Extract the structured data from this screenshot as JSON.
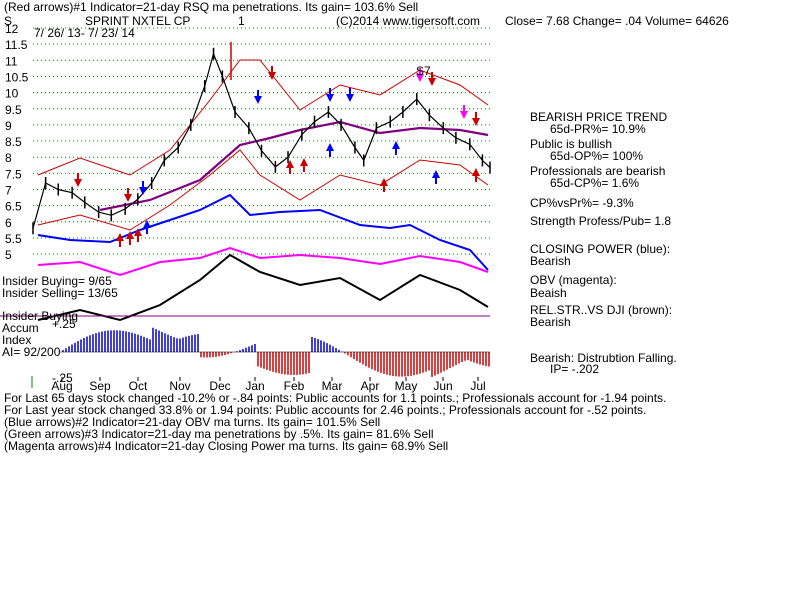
{
  "header": {
    "line1": "(Red arrows)#1 Indicator=21-day RSQ ma penetrations. Its gain= 103.6% Sell",
    "symbol": "S",
    "company": "SPRINT NXTEL CP",
    "one": "1",
    "site": "(C)2014 www.tigersoft.com",
    "quote": "Close=  7.68  Change= .04 Volume= 64626",
    "dates": "7/ 26/ 13- 7/ 23/ 14"
  },
  "right_panel": {
    "trend": "BEARISH PRICE TREND",
    "pr": "65d-PR%= 10.9%",
    "public": "Public is bullish",
    "op": "65d-OP%= 100%",
    "prof": "Professionals are bearish",
    "cp": "65d-CP%= 1.6%",
    "cpvs": "CP%vsPr%= -9.3%",
    "strength": "Strength Profess/Pub= 1.8",
    "closing": "CLOSING POWER (blue):",
    "closing_val": "Bearish",
    "obv": "OBV (magenta):",
    "obv_val": "Beaish",
    "rel": "REL.STR..VS DJI (brown):",
    "rel_val": "Bearish",
    "dist": "Bearish: Distrubtion Falling.",
    "ip": "IP= -.202"
  },
  "left_labels": {
    "insider_buying": "Insider Buying= 9/65",
    "insider_selling": "Insider Selling= 13/65",
    "insider_buying2": "Insider Buying",
    "accum": "Accum",
    "plus25": "+.25",
    "index": "Index",
    "ai": "AI= 92/200",
    "minus25": "-.25",
    "s7": "S7"
  },
  "footer": {
    "l1": "For Last 65 days stock changed -10.2% or -.84 points:  Public accounts for  1.1 points.;  Professionals account for -1.94 points.",
    "l2": "For Last year stock changed  33.8% or  1.94 points:  Public accounts for  2.46 points.;  Professionals account for -.52 points.",
    "l3": "(Blue arrows)#2 Indicator=21-day OBV ma turns. Its gain= 101.5% Sell",
    "l4": "(Green arrows)#3 Indicator=21-day ma penetrations by .5%. Its gain= 81.6% Sell",
    "l5": "(Magenta arrows)#4 Indicator=21-day Closing Power ma turns. Its gain= 68.9% Sell"
  },
  "colors": {
    "price": "#000000",
    "bands": "#cc0000",
    "ma": "#800080",
    "closing_power": "#0000ff",
    "obv": "#ff00ff",
    "accum_pos": "#0000cc",
    "accum_neg": "#cc0000",
    "grid": "#008000"
  },
  "chart_data": {
    "type": "line",
    "y_ticks": [
      "12",
      "11.5",
      "11",
      "10.5",
      "10",
      "9.5",
      "9",
      "8.5",
      "8",
      "7.5",
      "7",
      "6.5",
      "6",
      "5.5",
      "5"
    ],
    "y_values": [
      12,
      11.5,
      11,
      10.5,
      10,
      9.5,
      9,
      8.5,
      8,
      7.5,
      7,
      6.5,
      6,
      5.5,
      5
    ],
    "x_ticks": [
      "Aug",
      "Sep",
      "Oct",
      "Nov",
      "Dec",
      "Jan",
      "Feb",
      "Mar",
      "Apr",
      "May",
      "Jun",
      "Jul"
    ],
    "ylim": [
      5,
      12
    ],
    "grid": true,
    "series": [
      {
        "x": [
          "2013-07-26",
          "2013-08-05",
          "2013-08-15",
          "2013-08-26",
          "2013-09-05",
          "2013-09-16",
          "2013-09-26",
          "2013-10-07",
          "2013-10-17",
          "2013-10-28",
          "2013-11-07",
          "2013-11-18",
          "2013-11-28",
          "2013-12-09",
          "2013-12-16",
          "2013-12-23",
          "2014-01-02",
          "2014-01-13",
          "2014-01-23",
          "2014-02-03",
          "2014-02-13",
          "2014-02-24",
          "2014-03-06",
          "2014-03-17",
          "2014-03-27",
          "2014-04-07",
          "2014-04-14",
          "2014-04-24",
          "2014-05-05",
          "2014-05-15",
          "2014-05-26",
          "2014-06-05",
          "2014-06-16",
          "2014-06-26",
          "2014-07-07",
          "2014-07-17",
          "2014-07-23"
        ],
        "values": [
          5.8,
          7.2,
          7.0,
          6.9,
          6.6,
          6.3,
          6.2,
          6.4,
          6.7,
          7.2,
          7.9,
          8.3,
          9.0,
          10.2,
          11.2,
          10.5,
          9.4,
          8.9,
          8.2,
          7.7,
          8.0,
          8.7,
          9.1,
          9.4,
          9.0,
          8.3,
          7.9,
          8.9,
          9.1,
          9.4,
          9.8,
          9.3,
          8.9,
          8.6,
          8.4,
          7.9,
          7.68
        ]
      }
    ]
  }
}
